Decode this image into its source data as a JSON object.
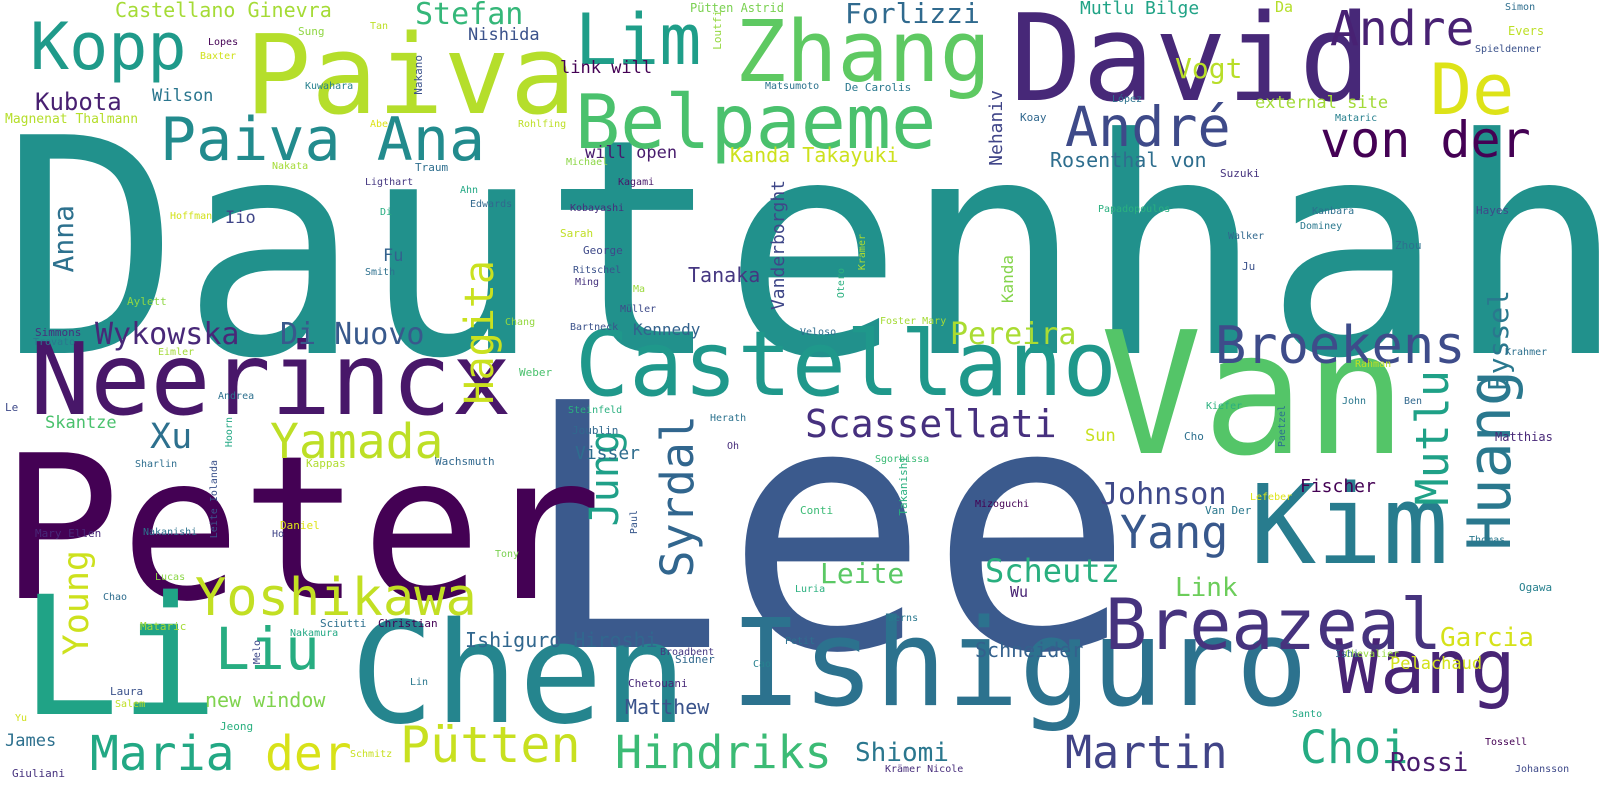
{
  "words": [
    {
      "text": "Dautenhahn",
      "color": "#21918c"
    },
    {
      "text": "Lee",
      "color": "#3b5a8d"
    },
    {
      "text": "Peter",
      "color": "#440154"
    },
    {
      "text": "Van",
      "color": "#54c568"
    },
    {
      "text": "David",
      "color": "#472878"
    },
    {
      "text": "Paiva",
      "color": "#b5de2b"
    },
    {
      "text": "Li",
      "color": "#20a386"
    },
    {
      "text": "Chen",
      "color": "#25858e"
    },
    {
      "text": "Ishiguro",
      "color": "#2c728e"
    },
    {
      "text": "Kim",
      "color": "#287c8e"
    },
    {
      "text": "Castellano",
      "color": "#1f988b"
    },
    {
      "text": "Neerincx",
      "color": "#481769"
    },
    {
      "text": "Zhang",
      "color": "#5ec962"
    },
    {
      "text": "Belpaeme",
      "color": "#4ac16d"
    },
    {
      "text": "Lim",
      "color": "#1f9e89"
    },
    {
      "text": "Kopp",
      "color": "#1f9a8a"
    },
    {
      "text": "Paiva Ana",
      "color": "#228b8d"
    },
    {
      "text": "Wang",
      "color": "#482475"
    },
    {
      "text": "Breazeal",
      "color": "#46337e"
    },
    {
      "text": "Huang",
      "color": "#2a788e"
    },
    {
      "text": "André",
      "color": "#3e4a89"
    },
    {
      "text": "von der",
      "color": "#440154"
    },
    {
      "text": "De",
      "color": "#dde318"
    },
    {
      "text": "Andre",
      "color": "#482173"
    },
    {
      "text": "Broekens",
      "color": "#3e4c8a"
    },
    {
      "text": "Yoshikawa",
      "color": "#c2df23"
    },
    {
      "text": "Maria",
      "color": "#22a884"
    },
    {
      "text": "der",
      "color": "#d8e219"
    },
    {
      "text": "Pütten",
      "color": "#c8e020"
    },
    {
      "text": "Hindriks",
      "color": "#3bbb75"
    },
    {
      "text": "Martin",
      "color": "#414487"
    },
    {
      "text": "Choi",
      "color": "#25ab82"
    },
    {
      "text": "Yamada",
      "color": "#bddf26"
    },
    {
      "text": "Hagita",
      "color": "#cae11f"
    },
    {
      "text": "Syrdal",
      "color": "#31668e"
    },
    {
      "text": "Jung",
      "color": "#1fa088"
    },
    {
      "text": "Mutlu",
      "color": "#1fa187"
    },
    {
      "text": "Yang",
      "color": "#38588c"
    },
    {
      "text": "Scassellati",
      "color": "#46307e"
    },
    {
      "text": "Young",
      "color": "#cde11d"
    },
    {
      "text": "Liu",
      "color": "#27ad81"
    },
    {
      "text": "Wykowska",
      "color": "#482878"
    },
    {
      "text": "Di Nuovo",
      "color": "#38598c"
    },
    {
      "text": "Xu",
      "color": "#2d708e"
    },
    {
      "text": "Johnson",
      "color": "#3e4989"
    },
    {
      "text": "Scheutz",
      "color": "#29af7f"
    },
    {
      "text": "Leite",
      "color": "#5ac864"
    },
    {
      "text": "Kubota",
      "color": "#482071"
    },
    {
      "text": "Anna",
      "color": "#2d718e"
    },
    {
      "text": "Pereira",
      "color": "#aadc32"
    },
    {
      "text": "Garcia",
      "color": "#d5e21a"
    },
    {
      "text": "Rossi",
      "color": "#481b6d"
    },
    {
      "text": "Eyssel",
      "color": "#2a788e"
    },
    {
      "text": "Link",
      "color": "#6ccd5a"
    },
    {
      "text": "Shiomi",
      "color": "#2a778e"
    },
    {
      "text": "Stefan",
      "color": "#35b779"
    },
    {
      "text": "Forlizzi",
      "color": "#306a8e"
    },
    {
      "text": "Vogt",
      "color": "#b8de29"
    },
    {
      "text": "Castellano Ginevra",
      "color": "#a5db36"
    },
    {
      "text": "Mutlu Bilge",
      "color": "#20a386"
    },
    {
      "text": "Tanaka",
      "color": "#453781"
    },
    {
      "text": "Vanderborght",
      "color": "#3f4788"
    },
    {
      "text": "Nehaniv",
      "color": "#404588"
    },
    {
      "text": "Kanda Takayuki",
      "color": "#cde11d"
    },
    {
      "text": "Rosenthal von",
      "color": "#2e6e8e"
    },
    {
      "text": "Ishiguro Hiroshi",
      "color": "#31678e"
    },
    {
      "text": "Schneider",
      "color": "#34618d"
    },
    {
      "text": "Matthew",
      "color": "#3a538b"
    },
    {
      "text": "new window",
      "color": "#7fd34e"
    },
    {
      "text": "Kennedy",
      "color": "#33628d"
    },
    {
      "text": "Visser",
      "color": "#2e6d8e"
    },
    {
      "text": "Fischer",
      "color": "#440154"
    },
    {
      "text": "Sun",
      "color": "#c8e020"
    },
    {
      "text": "Wu",
      "color": "#482374"
    },
    {
      "text": "Pelachaud",
      "color": "#d2e21b"
    },
    {
      "text": "Nishida",
      "color": "#3b528b"
    },
    {
      "text": "link will",
      "color": "#440154"
    },
    {
      "text": "will open",
      "color": "#481b6d"
    },
    {
      "text": "external site",
      "color": "#a2da37"
    },
    {
      "text": "Wilson",
      "color": "#2a768e"
    },
    {
      "text": "Skantze",
      "color": "#4ac16d"
    },
    {
      "text": "Iio",
      "color": "#404688"
    },
    {
      "text": "Fu",
      "color": "#33628d"
    },
    {
      "text": "Kanda",
      "color": "#84d44b"
    },
    {
      "text": "James",
      "color": "#2d708e"
    },
    {
      "text": "Magnenat Thalmann",
      "color": "#b5de2b"
    },
    {
      "text": "Lopes",
      "color": "#440154"
    },
    {
      "text": "Baxter",
      "color": "#d0e11c"
    },
    {
      "text": "Sung",
      "color": "#90d743"
    },
    {
      "text": "Tan",
      "color": "#bddf26"
    },
    {
      "text": "Da",
      "color": "#b5de2b"
    },
    {
      "text": "Pütten Astrid",
      "color": "#7ad151"
    },
    {
      "text": "Loutfi",
      "color": "#95d840"
    },
    {
      "text": "Nakano",
      "color": "#3b528b"
    },
    {
      "text": "Matsumoto",
      "color": "#2c728e"
    },
    {
      "text": "De Carolis",
      "color": "#2a788e"
    },
    {
      "text": "Kuwahara",
      "color": "#27808e"
    },
    {
      "text": "Rohlfing",
      "color": "#bddf26"
    },
    {
      "text": "Abe",
      "color": "#dde318"
    },
    {
      "text": "Nakata",
      "color": "#a5db36"
    },
    {
      "text": "Traum",
      "color": "#2e6e8e"
    },
    {
      "text": "Ligthart",
      "color": "#453781"
    },
    {
      "text": "Michael",
      "color": "#8bd646"
    },
    {
      "text": "Kagami",
      "color": "#48186a"
    },
    {
      "text": "Ahn",
      "color": "#22a884"
    },
    {
      "text": "Edwards",
      "color": "#31688e"
    },
    {
      "text": "Kobayashi",
      "color": "#472d7b"
    },
    {
      "text": "Sarah",
      "color": "#c0df25"
    },
    {
      "text": "George",
      "color": "#3e4989"
    },
    {
      "text": "Hoffman",
      "color": "#d2e21b"
    },
    {
      "text": "Di",
      "color": "#27ad81"
    },
    {
      "text": "Smith",
      "color": "#2d708e"
    },
    {
      "text": "Aylett",
      "color": "#8fd744"
    },
    {
      "text": "Ritschel",
      "color": "#3b528b"
    },
    {
      "text": "Ming",
      "color": "#46337e"
    },
    {
      "text": "Ma",
      "color": "#9bd93c"
    },
    {
      "text": "Müller",
      "color": "#3e4a89"
    },
    {
      "text": "Kramer",
      "color": "#b0dd2f"
    },
    {
      "text": "Otero",
      "color": "#2ab07f"
    },
    {
      "text": "Veloso",
      "color": "#2e6d8e"
    },
    {
      "text": "Foster Mary",
      "color": "#a5db36"
    },
    {
      "text": "Chang",
      "color": "#95d840"
    },
    {
      "text": "Bartneck",
      "color": "#3b528b"
    },
    {
      "text": "Simmons",
      "color": "#46327e"
    },
    {
      "text": "Trovato",
      "color": "#2a788e"
    },
    {
      "text": "Eimler",
      "color": "#a2da37"
    },
    {
      "text": "Weber",
      "color": "#4ac16d"
    },
    {
      "text": "Andrea",
      "color": "#2d708e"
    },
    {
      "text": "Le",
      "color": "#3e4989"
    },
    {
      "text": "Steinfeld",
      "color": "#2ab07f"
    },
    {
      "text": "Joublin",
      "color": "#31688e"
    },
    {
      "text": "Herath",
      "color": "#2c728e"
    },
    {
      "text": "Oh",
      "color": "#472d7b"
    },
    {
      "text": "Sharlin",
      "color": "#2e6e8e"
    },
    {
      "text": "Hoorn",
      "color": "#22a884"
    },
    {
      "text": "Kappas",
      "color": "#b0dd2f"
    },
    {
      "text": "Wachsmuth",
      "color": "#31688e"
    },
    {
      "text": "Leite Iolanda",
      "color": "#3b528b"
    },
    {
      "text": "Paul",
      "color": "#38588c"
    },
    {
      "text": "Sgorbissa",
      "color": "#3bbb75"
    },
    {
      "text": "Takanishi",
      "color": "#2ab07f"
    },
    {
      "text": "Mizoguchi",
      "color": "#440154"
    },
    {
      "text": "Conti",
      "color": "#3bbb75"
    },
    {
      "text": "Van Der",
      "color": "#2a788e"
    },
    {
      "text": "Daniel",
      "color": "#dde318"
    },
    {
      "text": "Ho",
      "color": "#404588"
    },
    {
      "text": "Mary Ellen",
      "color": "#482878"
    },
    {
      "text": "Nakanishi",
      "color": "#2c728e"
    },
    {
      "text": "Tony",
      "color": "#7ad151"
    },
    {
      "text": "Lucas",
      "color": "#8bd646"
    },
    {
      "text": "Chao",
      "color": "#2e6d8e"
    },
    {
      "text": "Mataric",
      "color": "#a5db36"
    },
    {
      "text": "Nakamura",
      "color": "#22a884"
    },
    {
      "text": "Melo",
      "color": "#3e4989"
    },
    {
      "text": "Sciutti",
      "color": "#2d708e"
    },
    {
      "text": "Christian",
      "color": "#440154"
    },
    {
      "text": "Laura",
      "color": "#3b528b"
    },
    {
      "text": "Salem",
      "color": "#c0df25"
    },
    {
      "text": "Yu",
      "color": "#d0e11c"
    },
    {
      "text": "Lin",
      "color": "#2a788e"
    },
    {
      "text": "Jeong",
      "color": "#2ab07f"
    },
    {
      "text": "Giuliani",
      "color": "#46327e"
    },
    {
      "text": "Schmitz",
      "color": "#c8e020"
    },
    {
      "text": "Sidner",
      "color": "#31688e"
    },
    {
      "text": "Cao",
      "color": "#27808e"
    },
    {
      "text": "Chetouani",
      "color": "#482878"
    },
    {
      "text": "Broadbent",
      "color": "#453781"
    },
    {
      "text": "Luria",
      "color": "#2ab07f"
    },
    {
      "text": "Petit",
      "color": "#2d708e"
    },
    {
      "text": "Berns",
      "color": "#2a788e"
    },
    {
      "text": "Krämer Nicole",
      "color": "#472d7b"
    },
    {
      "text": "Chevalier",
      "color": "#95d840"
    },
    {
      "text": "Ishi",
      "color": "#31688e"
    },
    {
      "text": "Santo",
      "color": "#22a884"
    },
    {
      "text": "Johansson",
      "color": "#3e4989"
    },
    {
      "text": "Tossell",
      "color": "#440154"
    },
    {
      "text": "Simon",
      "color": "#2e6e8e"
    },
    {
      "text": "Evers",
      "color": "#bddf26"
    },
    {
      "text": "Spieldenner",
      "color": "#3b528b"
    },
    {
      "text": "López",
      "color": "#2c728e"
    },
    {
      "text": "Koay",
      "color": "#31688e"
    },
    {
      "text": "Mataric",
      "color": "#27808e"
    },
    {
      "text": "Suzuki",
      "color": "#46337e"
    },
    {
      "text": "Papadopoulos",
      "color": "#2ab07f"
    },
    {
      "text": "Kanbara",
      "color": "#2d708e"
    },
    {
      "text": "Dominey",
      "color": "#2a788e"
    },
    {
      "text": "Hayes",
      "color": "#3e4989"
    },
    {
      "text": "Walker",
      "color": "#31688e"
    },
    {
      "text": "Zhou",
      "color": "#2c728e"
    },
    {
      "text": "Ju",
      "color": "#3b528b"
    },
    {
      "text": "Krahmer",
      "color": "#2d708e"
    },
    {
      "text": "Rahman",
      "color": "#c0df25"
    },
    {
      "text": "John",
      "color": "#2a788e"
    },
    {
      "text": "Ben",
      "color": "#31688e"
    },
    {
      "text": "Kiefer",
      "color": "#2ab07f"
    },
    {
      "text": "Paetzel",
      "color": "#2c728e"
    },
    {
      "text": "Cho",
      "color": "#2d708e"
    },
    {
      "text": "Matthias",
      "color": "#482878"
    },
    {
      "text": "Lefeber",
      "color": "#dde318"
    },
    {
      "text": "Thomas",
      "color": "#2a788e"
    },
    {
      "text": "Ogawa",
      "color": "#27808e"
    }
  ]
}
